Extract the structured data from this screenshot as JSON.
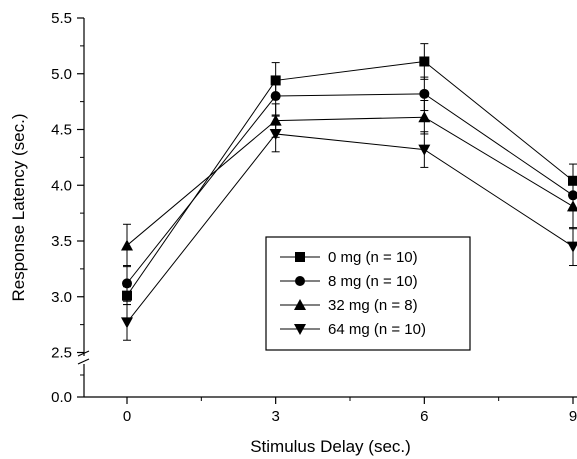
{
  "chart_data": {
    "type": "line",
    "title": "",
    "xlabel": "Stimulus Delay (sec.)",
    "ylabel": "Response Latency (sec.)",
    "x": [
      0,
      3,
      6,
      9
    ],
    "x_ticks": [
      "0",
      "3",
      "6",
      "9"
    ],
    "xlim": [
      -1.2,
      10.5
    ],
    "y_ticks_upper": [
      "2.5",
      "3.0",
      "3.5",
      "4.0",
      "4.5",
      "5.0",
      "5.5"
    ],
    "y_ticks_lower": [
      "0.0"
    ],
    "ylim_upper": [
      2.5,
      5.5
    ],
    "ylim_lower": [
      0.0,
      0.0
    ],
    "axis_break": "between 0.0 and 2.5 on y-axis",
    "grid": false,
    "legend_placement": "center-right",
    "series": [
      {
        "name": "0 mg (n = 10)",
        "marker": "square",
        "values": [
          3.01,
          4.94,
          5.11,
          4.04
        ],
        "errors": [
          0.08,
          0.16,
          0.16,
          0.15
        ]
      },
      {
        "name": "8 mg (n = 10)",
        "marker": "circle",
        "values": [
          3.12,
          4.8,
          4.82,
          3.91
        ],
        "errors": [
          0.16,
          0.17,
          0.15,
          0.14
        ]
      },
      {
        "name": "32 mg (n = 8)",
        "marker": "triangle-up",
        "values": [
          3.46,
          4.58,
          4.61,
          3.81
        ],
        "errors": [
          0.19,
          0.15,
          0.15,
          0.2
        ]
      },
      {
        "name": "64 mg (n = 10)",
        "marker": "triangle-down",
        "values": [
          2.77,
          4.46,
          4.32,
          3.45
        ],
        "errors": [
          0.16,
          0.16,
          0.16,
          0.17
        ]
      }
    ],
    "colors": {
      "line": "#000000",
      "marker": "#000000"
    }
  }
}
